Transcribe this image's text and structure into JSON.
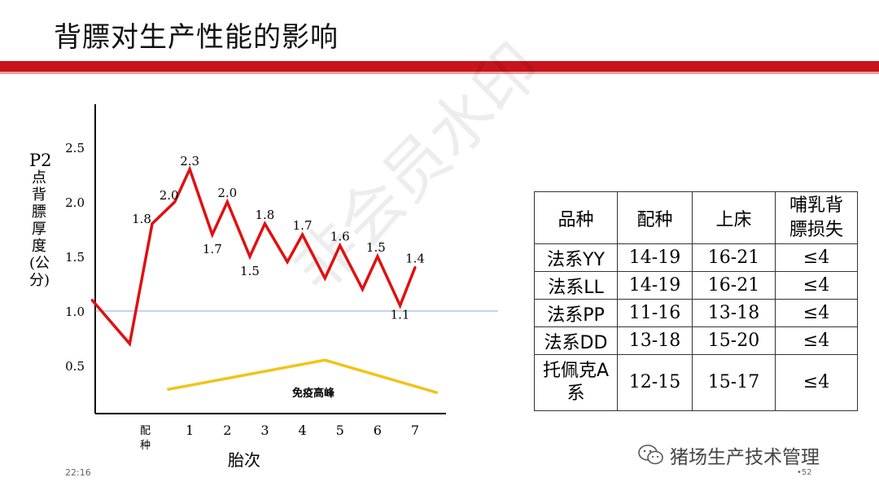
{
  "title": "背膘对生产性能的影响",
  "footer": {
    "time": "22:16",
    "page": "•52",
    "brand": "猪场生产技术管理"
  },
  "watermark": "非会员水印",
  "chart_data": {
    "type": "line",
    "ylabel": {
      "symbol": "P2",
      "text": "点背膘厚度(公分)"
    },
    "xlabel": "胎次",
    "yticks": [
      "0.5",
      "1.0",
      "1.5",
      "2.0",
      "2.5"
    ],
    "ylim": [
      0,
      2.9
    ],
    "x_marker_label": "配种",
    "xticks": [
      "1",
      "2",
      "3",
      "4",
      "5",
      "6",
      "7"
    ],
    "series": [
      {
        "x": [
          -1.6,
          -0.6,
          0,
          0.6,
          1,
          1.6,
          2,
          2.6,
          3,
          3.6,
          4,
          4.6,
          5,
          5.6,
          6,
          6.6,
          7
        ],
        "values": [
          1.1,
          0.7,
          1.8,
          2.0,
          2.3,
          1.7,
          2.0,
          1.5,
          1.8,
          1.45,
          1.7,
          1.3,
          1.6,
          1.2,
          1.5,
          1.05,
          1.4
        ],
        "color": "#e01010"
      }
    ],
    "point_labels": [
      {
        "x": 0,
        "y": 1.8,
        "text": "1.8"
      },
      {
        "x": 0.6,
        "y": 2.0,
        "text": "2.0"
      },
      {
        "x": 1,
        "y": 2.3,
        "text": "2.3"
      },
      {
        "x": 1.6,
        "y": 1.7,
        "text": "1.7"
      },
      {
        "x": 2,
        "y": 2.0,
        "text": "2.0"
      },
      {
        "x": 2.6,
        "y": 1.5,
        "text": "1.5"
      },
      {
        "x": 3,
        "y": 1.8,
        "text": "1.8"
      },
      {
        "x": 4,
        "y": 1.7,
        "text": "1.7"
      },
      {
        "x": 5,
        "y": 1.6,
        "text": "1.6"
      },
      {
        "x": 6,
        "y": 1.5,
        "text": "1.5"
      },
      {
        "x": 6.6,
        "y": 1.05,
        "text": "1.1"
      },
      {
        "x": 7,
        "y": 1.4,
        "text": "1.4"
      }
    ],
    "reference_line": {
      "y": 1.0,
      "color": "#7fb2d8"
    },
    "immune_peak": {
      "label": "免疫高峰",
      "x": [
        0.4,
        4.6,
        7.6
      ],
      "values": [
        0.28,
        0.55,
        0.25
      ],
      "color": "#f0c419"
    }
  },
  "table": {
    "headers": [
      "品种",
      "配种",
      "上床",
      "哺乳背膘损失"
    ],
    "rows": [
      [
        "法系YY",
        "14-19",
        "16-21",
        "≤4"
      ],
      [
        "法系LL",
        "14-19",
        "16-21",
        "≤4"
      ],
      [
        "法系PP",
        "11-16",
        "13-18",
        "≤4"
      ],
      [
        "法系DD",
        "13-18",
        "15-20",
        "≤4"
      ],
      [
        "托佩克A系",
        "12-15",
        "15-17",
        "≤4"
      ]
    ]
  }
}
